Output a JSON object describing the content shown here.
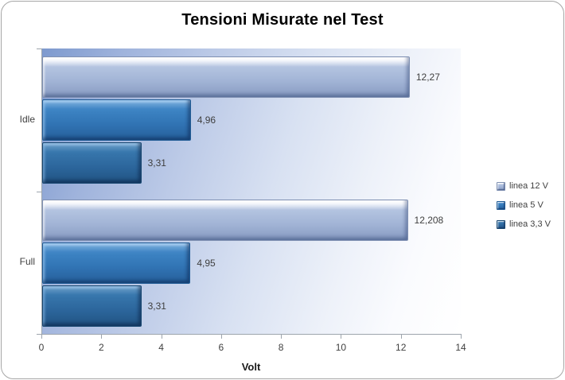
{
  "title": "Tensioni Misurate nel Test",
  "chart_data": {
    "type": "bar",
    "orientation": "horizontal",
    "title": "Tensioni Misurate nel Test",
    "xlabel": "Volt",
    "categories": [
      "Idle",
      "Full"
    ],
    "series": [
      {
        "name": "linea 12 V",
        "values": [
          12.27,
          12.208
        ],
        "labels": [
          "12,27",
          "12,208"
        ],
        "color": "#a9badb"
      },
      {
        "name": "linea 5 V",
        "values": [
          4.96,
          4.95
        ],
        "labels": [
          "4,96",
          "4,95"
        ],
        "color": "#3176b6"
      },
      {
        "name": "linea 3,3 V",
        "values": [
          3.31,
          3.31
        ],
        "labels": [
          "3,31",
          "3,31"
        ],
        "color": "#2b649a"
      }
    ],
    "xlim": [
      0,
      14
    ],
    "xticks": [
      "0",
      "2",
      "4",
      "6",
      "8",
      "10",
      "12",
      "14"
    ],
    "grid": false,
    "legend_position": "right",
    "data_labels": true
  },
  "colors": {
    "frame_border": "#a6a6a6",
    "axis_line": "#9da5ad",
    "text": "#3f3f3f"
  }
}
